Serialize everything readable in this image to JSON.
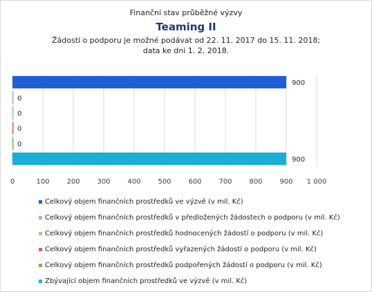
{
  "chart_data": {
    "type": "bar",
    "orientation": "horizontal",
    "pretitle": "Finanční stav průběžné výzvy",
    "title": "Teaming II",
    "subtitle_lines": [
      "Žádosti o podporu je možné  podávat od 22. 11. 2017 do 15. 11. 2018;",
      "data ke dni 1. 2. 2018."
    ],
    "xlim": [
      0,
      1000
    ],
    "xticks": [
      "0",
      "100",
      "200",
      "300",
      "400",
      "500",
      "600",
      "700",
      "800",
      "900",
      "1 000"
    ],
    "grid": true,
    "legend_position": "bottom",
    "series": [
      {
        "name": "Celkový objem finančních prostředků ve výzvě (v mil. Kč)",
        "value": 900,
        "label": "900",
        "color": "#1f5fd6"
      },
      {
        "name": "Celkový objem finančních prostředků v předložených žádostech o podporu (v mil. Kč)",
        "value": 0,
        "label": "0",
        "color": "#9db3dd"
      },
      {
        "name": "Celkový objem finančních prostředků hodnocených žádostí o podporu (v mil. Kč)",
        "value": 0,
        "label": "0",
        "color": "#a8c88a"
      },
      {
        "name": "Celkový objem finančních prostředků vyřazených žádostí o podporu (v mil. Kč)",
        "value": 0,
        "label": "0",
        "color": "#e06060"
      },
      {
        "name": "Celkový objem finančních prostředků podpořených žádostí o podporu (v mil. Kč)",
        "value": 0,
        "label": "0",
        "color": "#7cb83a"
      },
      {
        "name": "Zbývající objem finančních prostředků ve výzvě (v mil. Kč)",
        "value": 900,
        "label": "900",
        "color": "#1aaed6"
      }
    ]
  }
}
